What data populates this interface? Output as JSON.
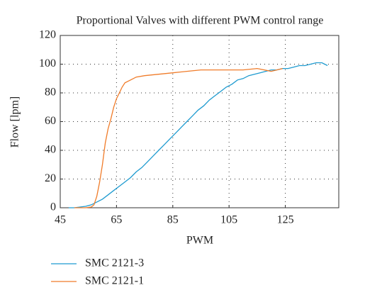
{
  "chart_data": {
    "type": "line",
    "title": "Proportional Valves with different PWM control range",
    "xlabel": "PWM",
    "ylabel": "Flow [lpm]",
    "xlim": [
      45,
      144
    ],
    "xticks": [
      45,
      65,
      85,
      105,
      125
    ],
    "ylim": [
      0,
      120
    ],
    "yticks": [
      0,
      20,
      40,
      60,
      80,
      100,
      120
    ],
    "grid": true,
    "legend": "below",
    "series": [
      {
        "name": "SMC 2121-3",
        "color": "#1f9bd0",
        "x": [
          48,
          50,
          52,
          54,
          56,
          58,
          60,
          62,
          64,
          66,
          68,
          70,
          72,
          74,
          76,
          78,
          80,
          82,
          84,
          86,
          88,
          90,
          92,
          94,
          96,
          98,
          100,
          102,
          104,
          106,
          108,
          110,
          112,
          114,
          116,
          118,
          120,
          122,
          124,
          126,
          128,
          130,
          132,
          134,
          136,
          138,
          140
        ],
        "values": [
          0,
          0,
          0.5,
          1,
          2,
          4,
          6,
          9,
          12,
          15,
          18,
          21,
          25,
          28,
          32,
          36,
          40,
          44,
          48,
          52,
          56,
          60,
          64,
          68,
          71,
          75,
          78,
          81,
          84,
          86,
          89,
          90,
          92,
          93,
          94,
          95,
          96,
          96,
          97,
          97,
          98,
          99,
          99,
          100,
          101,
          101,
          99
        ]
      },
      {
        "name": "SMC 2121-1",
        "color": "#f07c2a",
        "x": [
          50,
          54,
          56,
          57,
          58,
          59,
          60,
          61,
          62,
          63,
          64,
          65,
          66,
          67,
          68,
          70,
          72,
          75,
          80,
          85,
          90,
          95,
          100,
          105,
          110,
          115,
          120,
          124
        ],
        "values": [
          0,
          0,
          0.5,
          2,
          8,
          18,
          30,
          45,
          55,
          62,
          70,
          76,
          80,
          84,
          87,
          89,
          91,
          92,
          93,
          94,
          95,
          96,
          96,
          96,
          96,
          97,
          95,
          97
        ]
      }
    ]
  }
}
